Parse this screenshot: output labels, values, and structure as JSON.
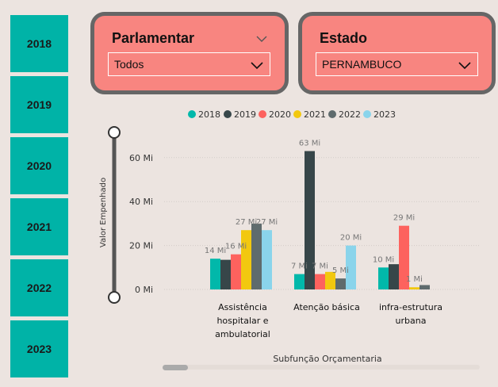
{
  "year_buttons": [
    "2018",
    "2019",
    "2020",
    "2021",
    "2022",
    "2023"
  ],
  "slicers": {
    "parlamentar": {
      "title": "Parlamentar",
      "value": "Todos"
    },
    "estado": {
      "title": "Estado",
      "value": "PERNAMBUCO"
    }
  },
  "colors": {
    "teal": "#00b3a7",
    "slicer_bg": "#f88580",
    "slicer_border": "#666666",
    "background": "#ece4e0"
  },
  "chart_data": {
    "type": "bar",
    "categories": [
      [
        "Assistência",
        "hospitalar e",
        "ambulatorial"
      ],
      [
        "Atenção básica"
      ],
      [
        "infra-estrutura",
        "urbana"
      ]
    ],
    "series": [
      {
        "name": "2018",
        "color": "#01b8aa",
        "values": [
          14,
          7,
          10
        ],
        "labels": [
          "14 Mi",
          "7 Mi",
          "10 Mi"
        ]
      },
      {
        "name": "2019",
        "color": "#374649",
        "values": [
          13.5,
          63,
          11.5
        ],
        "labels": [
          "",
          "63 Mi",
          ""
        ]
      },
      {
        "name": "2020",
        "color": "#fd625e",
        "values": [
          16,
          7,
          29
        ],
        "labels": [
          "16 Mi",
          "7 Mi",
          "29 Mi"
        ]
      },
      {
        "name": "2021",
        "color": "#f2c80f",
        "values": [
          27,
          8,
          1
        ],
        "labels": [
          "27 Mi",
          "",
          "1 Mi"
        ]
      },
      {
        "name": "2022",
        "color": "#5f6b6d",
        "values": [
          30,
          5,
          2
        ],
        "labels": [
          "",
          "5 Mi",
          ""
        ]
      },
      {
        "name": "2023",
        "color": "#8ad4eb",
        "values": [
          27,
          20,
          0
        ],
        "labels": [
          "27 Mi",
          "20 Mi",
          ""
        ]
      }
    ],
    "y_ticks": [
      "0 Mi",
      "20 Mi",
      "40 Mi",
      "60 Mi"
    ],
    "ylim": [
      0,
      70
    ],
    "ylabel": "Valor Empenhado",
    "xlabel": "Subfunção Orçamentaria",
    "legend_position": "top"
  }
}
